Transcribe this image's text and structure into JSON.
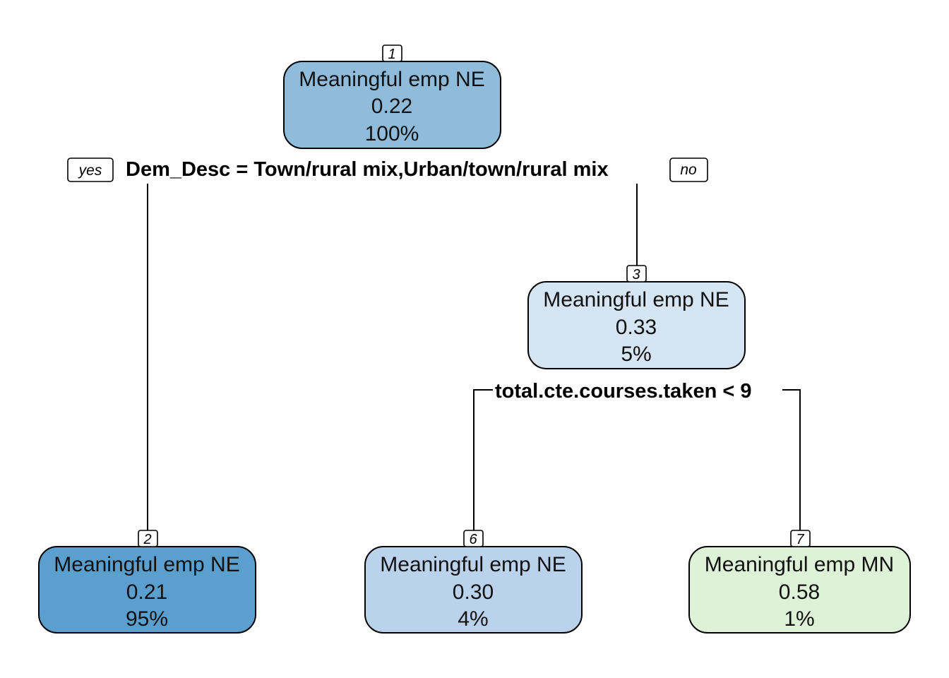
{
  "tree": {
    "nodes": [
      {
        "id": "1",
        "label": "Meaningful emp NE",
        "value": "0.22",
        "percent": "100%",
        "color": "#8fbcdb"
      },
      {
        "id": "3",
        "label": "Meaningful emp NE",
        "value": "0.33",
        "percent": "5%",
        "color": "#d6e5f4"
      },
      {
        "id": "2",
        "label": "Meaningful emp NE",
        "value": "0.21",
        "percent": "95%",
        "color": "#5a9fcd"
      },
      {
        "id": "6",
        "label": "Meaningful emp NE",
        "value": "0.30",
        "percent": "4%",
        "color": "#bad2ec"
      },
      {
        "id": "7",
        "label": "Meaningful emp MN",
        "value": "0.58",
        "percent": "1%",
        "color": "#def2d8"
      }
    ],
    "splits": [
      {
        "text": "Dem_Desc = Town/rural mix,Urban/town/rural mix"
      },
      {
        "text": "total.cte.courses.taken < 9"
      }
    ],
    "yes_label": "yes",
    "no_label": "no"
  }
}
